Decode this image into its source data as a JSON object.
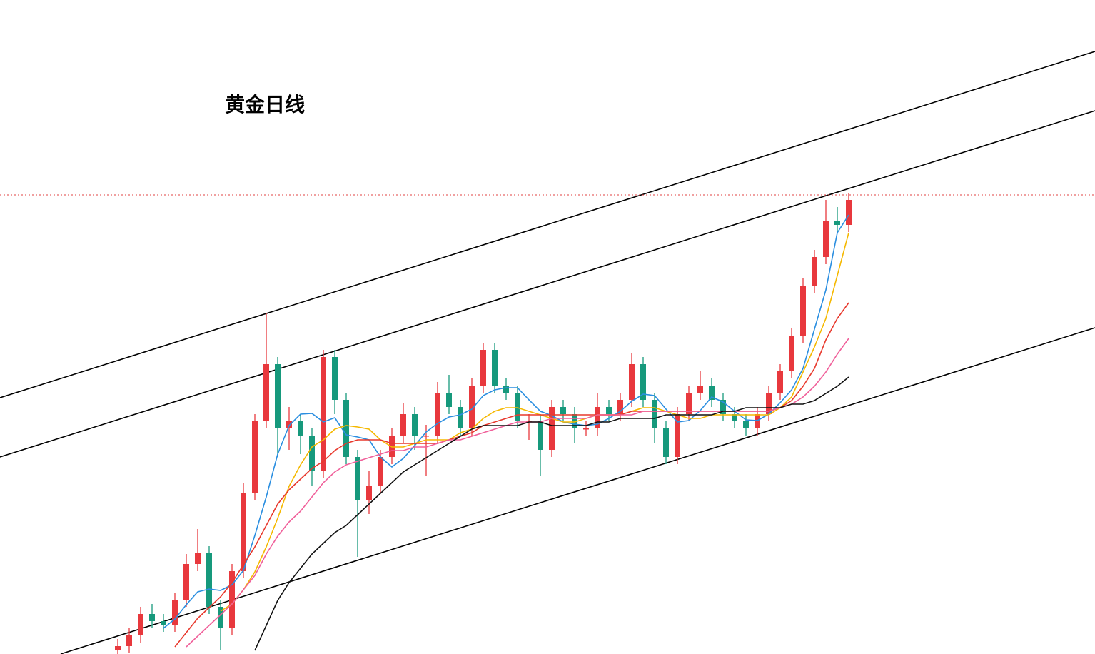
{
  "chart_data": {
    "type": "candlestick",
    "title": "黄金日线",
    "ylim": [
      0,
      916
    ],
    "up_color": "#e8383d",
    "down_color": "#16997c",
    "open": [
      5,
      11,
      26,
      56,
      46,
      41,
      76,
      126,
      141,
      66,
      36,
      116,
      226,
      326,
      406,
      316,
      326,
      306,
      256,
      416,
      356,
      276,
      216,
      236,
      276,
      306,
      336,
      306,
      306,
      366,
      346,
      316,
      376,
      426,
      376,
      366,
      326,
      326,
      286,
      346,
      336,
      316,
      316,
      346,
      336,
      356,
      406,
      356,
      316,
      276,
      336,
      366,
      376,
      356,
      336,
      326,
      316,
      336,
      366,
      396,
      446,
      516,
      556,
      606,
      601
    ],
    "high": [
      21,
      36,
      66,
      70,
      56,
      86,
      140,
      175,
      151,
      76,
      126,
      240,
      336,
      478,
      416,
      346,
      336,
      316,
      426,
      426,
      366,
      286,
      256,
      286,
      316,
      351,
      346,
      321,
      381,
      391,
      356,
      386,
      436,
      436,
      386,
      376,
      336,
      336,
      356,
      356,
      346,
      326,
      366,
      356,
      366,
      421,
      416,
      366,
      326,
      346,
      376,
      396,
      386,
      366,
      346,
      336,
      346,
      376,
      406,
      456,
      526,
      566,
      636,
      626,
      646
    ],
    "low": [
      0,
      1,
      16,
      36,
      31,
      31,
      66,
      116,
      56,
      6,
      26,
      106,
      216,
      316,
      276,
      286,
      280,
      236,
      246,
      336,
      266,
      136,
      196,
      226,
      266,
      296,
      286,
      250,
      296,
      336,
      306,
      306,
      366,
      366,
      356,
      316,
      300,
      250,
      276,
      326,
      296,
      306,
      306,
      326,
      326,
      346,
      346,
      296,
      266,
      266,
      326,
      356,
      346,
      326,
      316,
      306,
      306,
      326,
      356,
      386,
      436,
      506,
      546,
      591,
      591
    ],
    "close": [
      11,
      26,
      56,
      46,
      41,
      76,
      126,
      141,
      66,
      36,
      116,
      226,
      326,
      406,
      316,
      326,
      306,
      256,
      416,
      356,
      276,
      216,
      236,
      276,
      306,
      336,
      306,
      306,
      366,
      346,
      316,
      376,
      426,
      376,
      366,
      326,
      326,
      286,
      346,
      336,
      316,
      316,
      346,
      336,
      356,
      406,
      356,
      316,
      276,
      336,
      366,
      376,
      356,
      336,
      326,
      316,
      336,
      366,
      396,
      446,
      516,
      556,
      606,
      601,
      636
    ],
    "series": [
      {
        "color": "#2a8ee0",
        "values": [
          null,
          null,
          null,
          null,
          36,
          49,
          69,
          87,
          91,
          89,
          97,
          117,
          166,
          220,
          280,
          320,
          336,
          337,
          325,
          331,
          307,
          304,
          300,
          276,
          262,
          274,
          292,
          311,
          323,
          332,
          335,
          343,
          362,
          370,
          373,
          373,
          356,
          340,
          334,
          325,
          322,
          320,
          322,
          330,
          340,
          354,
          364,
          362,
          343,
          325,
          327,
          341,
          360,
          353,
          340,
          328,
          327,
          336,
          352,
          370,
          400,
          455,
          510,
          590,
          615
        ]
      },
      {
        "color": "#f5b800",
        "values": [
          null,
          null,
          null,
          null,
          null,
          null,
          null,
          null,
          null,
          60,
          70,
          90,
          115,
          150,
          190,
          235,
          265,
          290,
          300,
          315,
          320,
          318,
          315,
          300,
          290,
          290,
          295,
          300,
          300,
          300,
          310,
          315,
          330,
          340,
          345,
          345,
          340,
          335,
          330,
          325,
          325,
          330,
          335,
          335,
          335,
          340,
          345,
          345,
          340,
          335,
          330,
          330,
          335,
          335,
          335,
          335,
          335,
          335,
          345,
          360,
          395,
          430,
          470,
          530,
          590
        ]
      },
      {
        "color": "#e8382c",
        "values": [
          null,
          null,
          null,
          null,
          null,
          10,
          30,
          50,
          65,
          80,
          100,
          125,
          150,
          180,
          210,
          230,
          245,
          260,
          270,
          285,
          295,
          300,
          300,
          300,
          295,
          295,
          295,
          295,
          295,
          300,
          305,
          310,
          320,
          325,
          330,
          335,
          335,
          335,
          335,
          335,
          335,
          335,
          335,
          335,
          335,
          340,
          340,
          340,
          340,
          340,
          340,
          340,
          340,
          340,
          340,
          340,
          340,
          340,
          345,
          355,
          375,
          400,
          440,
          470,
          492
        ]
      },
      {
        "color": "#f0609a",
        "values": [
          null,
          null,
          null,
          null,
          null,
          null,
          10,
          25,
          40,
          55,
          70,
          90,
          110,
          140,
          165,
          185,
          200,
          220,
          240,
          255,
          265,
          270,
          275,
          280,
          285,
          285,
          290,
          290,
          295,
          300,
          300,
          305,
          310,
          315,
          320,
          325,
          325,
          325,
          330,
          330,
          330,
          330,
          335,
          335,
          335,
          335,
          340,
          340,
          340,
          340,
          340,
          340,
          340,
          340,
          340,
          340,
          340,
          340,
          345,
          350,
          360,
          375,
          395,
          420,
          442
        ]
      },
      {
        "color": "#111111",
        "values": [
          null,
          null,
          null,
          null,
          null,
          null,
          null,
          null,
          null,
          null,
          null,
          null,
          5,
          40,
          75,
          100,
          120,
          140,
          155,
          170,
          180,
          195,
          210,
          225,
          240,
          255,
          265,
          275,
          285,
          295,
          305,
          315,
          320,
          320,
          320,
          320,
          325,
          325,
          320,
          320,
          320,
          320,
          325,
          325,
          330,
          330,
          330,
          330,
          335,
          335,
          335,
          335,
          335,
          340,
          340,
          345,
          345,
          345,
          345,
          350,
          350,
          355,
          365,
          375,
          388
        ]
      }
    ]
  }
}
